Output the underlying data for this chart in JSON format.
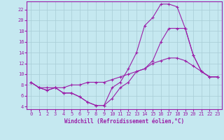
{
  "xlabel": "Windchill (Refroidissement éolien,°C)",
  "xlim": [
    -0.5,
    23.5
  ],
  "ylim": [
    3.5,
    23.5
  ],
  "xticks": [
    0,
    1,
    2,
    3,
    4,
    5,
    6,
    7,
    8,
    9,
    10,
    11,
    12,
    13,
    14,
    15,
    16,
    17,
    18,
    19,
    20,
    21,
    22,
    23
  ],
  "yticks": [
    4,
    6,
    8,
    10,
    12,
    14,
    16,
    18,
    20,
    22
  ],
  "bg_color": "#c5e8f0",
  "line_color": "#9b1fa8",
  "grid_color": "#a8ccd6",
  "line1_x": [
    0,
    1,
    2,
    3,
    4,
    5,
    6,
    7,
    8,
    9,
    10,
    11,
    12,
    13,
    14,
    15,
    16,
    17,
    18,
    19,
    20,
    21,
    22,
    23
  ],
  "line1_y": [
    8.5,
    7.5,
    7.0,
    7.5,
    6.5,
    6.5,
    5.8,
    4.8,
    4.2,
    4.2,
    7.5,
    8.5,
    11.0,
    14.0,
    19.0,
    20.5,
    23.0,
    23.0,
    22.5,
    18.5,
    13.5,
    10.5,
    9.5,
    9.5
  ],
  "line2_x": [
    0,
    1,
    2,
    3,
    4,
    5,
    6,
    7,
    8,
    9,
    10,
    11,
    12,
    13,
    14,
    15,
    16,
    17,
    18,
    19,
    20,
    21,
    22,
    23
  ],
  "line2_y": [
    8.5,
    7.5,
    7.5,
    7.5,
    7.5,
    8.0,
    8.0,
    8.5,
    8.5,
    8.5,
    9.0,
    9.5,
    10.0,
    10.5,
    11.0,
    12.0,
    12.5,
    13.0,
    13.0,
    12.5,
    11.5,
    10.5,
    9.5,
    9.5
  ],
  "line3_x": [
    0,
    1,
    2,
    3,
    4,
    5,
    6,
    7,
    8,
    9,
    10,
    11,
    12,
    13,
    14,
    15,
    16,
    17,
    18,
    19,
    20,
    21,
    22,
    23
  ],
  "line3_y": [
    8.5,
    7.5,
    7.0,
    7.5,
    6.5,
    6.5,
    5.8,
    4.8,
    4.2,
    4.2,
    5.5,
    7.5,
    8.5,
    10.5,
    11.0,
    12.5,
    16.0,
    18.5,
    18.5,
    18.5,
    13.5,
    10.5,
    9.5,
    9.5
  ],
  "tick_fontsize": 5,
  "xlabel_fontsize": 5.5,
  "marker_size": 3,
  "line_width": 0.8
}
